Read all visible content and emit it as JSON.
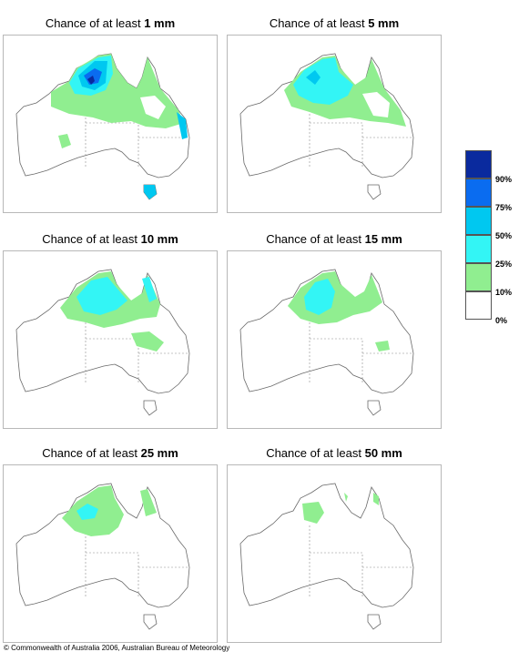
{
  "panels": [
    {
      "title_prefix": "Chance of at least ",
      "title_value": "1 mm"
    },
    {
      "title_prefix": "Chance of at least ",
      "title_value": "5 mm"
    },
    {
      "title_prefix": "Chance of at least ",
      "title_value": "10 mm"
    },
    {
      "title_prefix": "Chance of at least ",
      "title_value": "15 mm"
    },
    {
      "title_prefix": "Chance of at least ",
      "title_value": "25 mm"
    },
    {
      "title_prefix": "Chance of at least ",
      "title_value": "50 mm"
    }
  ],
  "legend": {
    "labels": [
      "90%",
      "75%",
      "50%",
      "25%",
      "10%",
      "0%"
    ],
    "colors": [
      "#0a2a9e",
      "#0a6cf0",
      "#00c8f0",
      "#33f5f5",
      "#90ee90",
      "#ffffff"
    ]
  },
  "credit": "© Commonwealth of Australia 2006, Australian Bureau of Meteorology"
}
